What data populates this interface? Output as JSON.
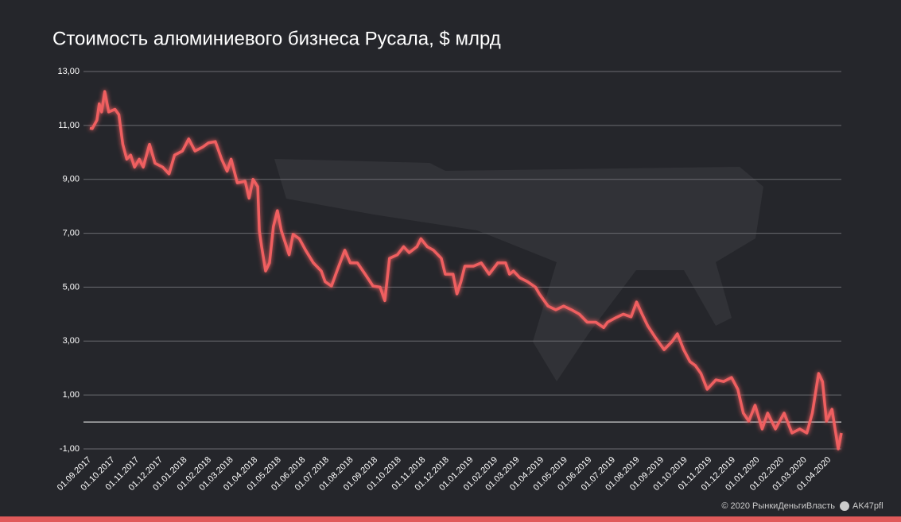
{
  "chart_data": {
    "type": "line",
    "title": "Стоимость алюминиевого бизнеса Русала, $ млрд",
    "credit": "© 2020  РынкиДеньгиВласть",
    "handle": "AK47pfl",
    "x": [
      "2017-09-01",
      "2017-09-04",
      "2017-09-10",
      "2017-09-13",
      "2017-09-16",
      "2017-09-20",
      "2017-09-25",
      "2017-10-03",
      "2017-10-08",
      "2017-10-13",
      "2017-10-18",
      "2017-10-23",
      "2017-10-28",
      "2017-11-03",
      "2017-11-08",
      "2017-11-16",
      "2017-11-23",
      "2017-12-03",
      "2017-12-11",
      "2017-12-18",
      "2017-12-28",
      "2018-01-05",
      "2018-01-13",
      "2018-01-23",
      "2018-01-30",
      "2018-02-08",
      "2018-02-16",
      "2018-02-23",
      "2018-02-28",
      "2018-03-08",
      "2018-03-18",
      "2018-03-23",
      "2018-03-28",
      "2018-04-03",
      "2018-04-05",
      "2018-04-08",
      "2018-04-13",
      "2018-04-18",
      "2018-04-23",
      "2018-04-28",
      "2018-05-03",
      "2018-05-08",
      "2018-05-13",
      "2018-05-18",
      "2018-05-26",
      "2018-06-03",
      "2018-06-13",
      "2018-06-23",
      "2018-06-28",
      "2018-07-06",
      "2018-07-13",
      "2018-07-23",
      "2018-07-30",
      "2018-08-08",
      "2018-08-18",
      "2018-08-28",
      "2018-09-06",
      "2018-09-12",
      "2018-09-18",
      "2018-09-28",
      "2018-10-06",
      "2018-10-13",
      "2018-10-23",
      "2018-10-28",
      "2018-11-05",
      "2018-11-13",
      "2018-11-23",
      "2018-11-28",
      "2018-12-08",
      "2018-12-13",
      "2018-12-18",
      "2018-12-23",
      "2019-01-03",
      "2019-01-13",
      "2019-01-23",
      "2019-02-03",
      "2019-02-13",
      "2019-02-18",
      "2019-02-23",
      "2019-03-03",
      "2019-03-13",
      "2019-03-23",
      "2019-03-28",
      "2019-04-08",
      "2019-04-18",
      "2019-04-28",
      "2019-05-08",
      "2019-05-18",
      "2019-05-28",
      "2019-06-08",
      "2019-06-18",
      "2019-06-23",
      "2019-07-03",
      "2019-07-13",
      "2019-07-23",
      "2019-07-30",
      "2019-08-06",
      "2019-08-13",
      "2019-08-23",
      "2019-09-03",
      "2019-09-13",
      "2019-09-20",
      "2019-09-28",
      "2019-10-06",
      "2019-10-13",
      "2019-10-20",
      "2019-10-28",
      "2019-11-08",
      "2019-11-18",
      "2019-11-28",
      "2019-12-06",
      "2019-12-13",
      "2019-12-20",
      "2019-12-28",
      "2020-01-06",
      "2020-01-13",
      "2020-01-23",
      "2020-02-03",
      "2020-02-13",
      "2020-02-23",
      "2020-03-03",
      "2020-03-10",
      "2020-03-18",
      "2020-03-23",
      "2020-03-28",
      "2020-04-04",
      "2020-04-08",
      "2020-04-12",
      "2020-04-16"
    ],
    "series": [
      {
        "name": "Стоимость",
        "color": "#ef5f60",
        "values": [
          10.9,
          10.88,
          11.2,
          11.8,
          11.5,
          12.26,
          11.5,
          11.6,
          11.4,
          10.3,
          9.75,
          9.9,
          9.45,
          9.75,
          9.45,
          10.3,
          9.6,
          9.45,
          9.2,
          9.9,
          10.05,
          10.5,
          10.05,
          10.2,
          10.35,
          10.4,
          9.75,
          9.3,
          9.75,
          8.87,
          8.93,
          8.3,
          9.0,
          8.73,
          7.1,
          6.5,
          5.6,
          5.9,
          7.25,
          7.84,
          7.1,
          6.66,
          6.2,
          6.96,
          6.8,
          6.37,
          5.9,
          5.6,
          5.2,
          5.04,
          5.6,
          6.37,
          5.9,
          5.9,
          5.48,
          5.04,
          5.0,
          4.5,
          6.07,
          6.2,
          6.5,
          6.28,
          6.5,
          6.8,
          6.5,
          6.37,
          6.07,
          5.48,
          5.48,
          4.75,
          5.2,
          5.78,
          5.78,
          5.9,
          5.48,
          5.9,
          5.9,
          5.48,
          5.6,
          5.35,
          5.2,
          5.0,
          4.75,
          4.3,
          4.16,
          4.3,
          4.16,
          4.0,
          3.7,
          3.7,
          3.5,
          3.7,
          3.86,
          4.0,
          3.9,
          4.45,
          4.0,
          3.57,
          3.13,
          2.68,
          2.98,
          3.27,
          2.68,
          2.24,
          2.09,
          1.8,
          1.21,
          1.56,
          1.5,
          1.65,
          1.21,
          0.33,
          0.03,
          0.62,
          -0.26,
          0.33,
          -0.26,
          0.33,
          -0.41,
          -0.26,
          -0.41,
          0.33,
          1.8,
          1.5,
          0.03,
          0.47,
          -0.26,
          -1.0,
          -0.41
        ]
      }
    ],
    "xlim": [
      "2017-09-01",
      "2020-04-16"
    ],
    "xticks": [
      {
        "value": "2017-09-01",
        "label": "01.09.2017"
      },
      {
        "value": "2017-10-01",
        "label": "01.10.2017"
      },
      {
        "value": "2017-11-01",
        "label": "01.11.2017"
      },
      {
        "value": "2017-12-01",
        "label": "01.12.2017"
      },
      {
        "value": "2018-01-01",
        "label": "01.01.2018"
      },
      {
        "value": "2018-02-01",
        "label": "01.02.2018"
      },
      {
        "value": "2018-03-01",
        "label": "01.03.2018"
      },
      {
        "value": "2018-04-01",
        "label": "01.04.2018"
      },
      {
        "value": "2018-05-01",
        "label": "01.05.2018"
      },
      {
        "value": "2018-06-01",
        "label": "01.06.2018"
      },
      {
        "value": "2018-07-01",
        "label": "01.07.2018"
      },
      {
        "value": "2018-08-01",
        "label": "01.08.2018"
      },
      {
        "value": "2018-09-01",
        "label": "01.09.2018"
      },
      {
        "value": "2018-10-01",
        "label": "01.10.2018"
      },
      {
        "value": "2018-11-01",
        "label": "01.11.2018"
      },
      {
        "value": "2018-12-01",
        "label": "01.12.2018"
      },
      {
        "value": "2019-01-01",
        "label": "01.01.2019"
      },
      {
        "value": "2019-02-01",
        "label": "01.02.2019"
      },
      {
        "value": "2019-03-01",
        "label": "01.03.2019"
      },
      {
        "value": "2019-04-01",
        "label": "01.04.2019"
      },
      {
        "value": "2019-05-01",
        "label": "01.05.2019"
      },
      {
        "value": "2019-06-01",
        "label": "01.06.2019"
      },
      {
        "value": "2019-07-01",
        "label": "01.07.2019"
      },
      {
        "value": "2019-08-01",
        "label": "01.08.2019"
      },
      {
        "value": "2019-09-01",
        "label": "01.09.2019"
      },
      {
        "value": "2019-10-01",
        "label": "01.10.2019"
      },
      {
        "value": "2019-11-01",
        "label": "01.11.2019"
      },
      {
        "value": "2019-12-01",
        "label": "01.12.2019"
      },
      {
        "value": "2020-01-01",
        "label": "01.01.2020"
      },
      {
        "value": "2020-02-01",
        "label": "01.02.2020"
      },
      {
        "value": "2020-03-01",
        "label": "01.03.2020"
      },
      {
        "value": "2020-04-01",
        "label": "01.04.2020"
      }
    ],
    "ylim": [
      -1,
      13
    ],
    "yticks": [
      {
        "value": -1,
        "label": "-1,00"
      },
      {
        "value": 1,
        "label": "1,00"
      },
      {
        "value": 3,
        "label": "3,00"
      },
      {
        "value": 5,
        "label": "5,00"
      },
      {
        "value": 7,
        "label": "7,00"
      },
      {
        "value": 9,
        "label": "9,00"
      },
      {
        "value": 11,
        "label": "11,00"
      },
      {
        "value": 13,
        "label": "13,00"
      }
    ],
    "grid": true,
    "zero_line": true
  }
}
